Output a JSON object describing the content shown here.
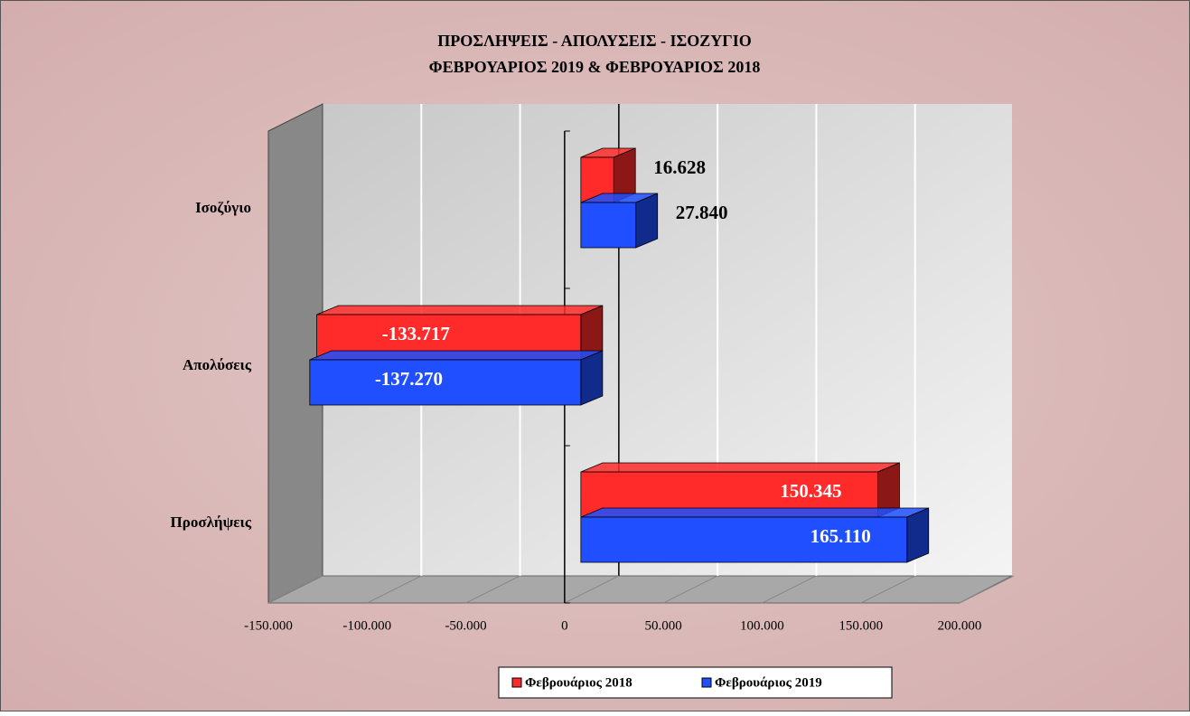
{
  "chart_data": {
    "type": "bar3d_horizontal",
    "title": "ΠΡΟΣΛΗΨΕΙΣ - ΑΠΟΛΥΣΕΙΣ - ΙΣΟΖΥΓΙΟ",
    "subtitle": "ΦΕΒΡΟΥΑΡΙΟΣ 2019 & ΦΕΒΡΟΥΑΡΙΟΣ 2018",
    "categories": [
      "Προσλήψεις",
      "Απολύσεις",
      "Ισοζύγιο"
    ],
    "series": [
      {
        "name": "Φεβρουάριος 2018",
        "color": "#ff2a2a",
        "values": [
          150345,
          -133717,
          16628
        ],
        "value_labels": [
          "150.345",
          "-133.717",
          "16.628"
        ]
      },
      {
        "name": "Φεβρουάριος 2019",
        "color": "#1f4fff",
        "values": [
          165110,
          -137270,
          27840
        ],
        "value_labels": [
          "165.110",
          "-137.270",
          "27.840"
        ]
      }
    ],
    "xlim": [
      -150000,
      200000
    ],
    "xticks": [
      {
        "value": -150000,
        "label": "-150.000"
      },
      {
        "value": -100000,
        "label": "-100.000"
      },
      {
        "value": -50000,
        "label": "-50.000"
      },
      0,
      {
        "value": 50000,
        "label": "50.000"
      },
      {
        "value": 100000,
        "label": "100.000"
      },
      {
        "value": 150000,
        "label": "150.000"
      },
      {
        "value": 200000,
        "label": "200.000"
      }
    ],
    "grid": true,
    "legend": "bottom"
  }
}
